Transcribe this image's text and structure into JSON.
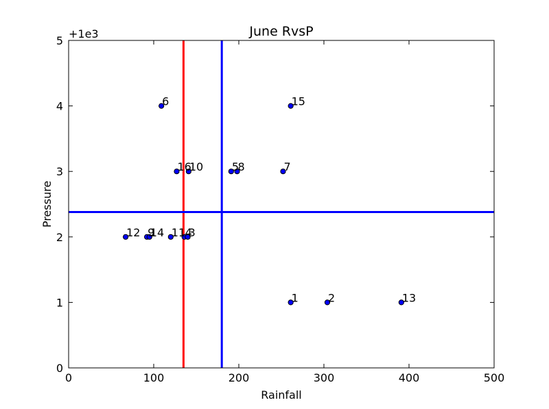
{
  "chart_data": {
    "type": "scatter",
    "title": "June RvsP",
    "xlabel": "Rainfall",
    "ylabel": "Pressure",
    "y_offset_label": "+1e3",
    "xlim": [
      0,
      500
    ],
    "ylim": [
      0,
      5
    ],
    "xticks": [
      "0",
      "100",
      "200",
      "300",
      "400",
      "500"
    ],
    "yticks": [
      "0",
      "1",
      "2",
      "3",
      "4",
      "5"
    ],
    "grid": false,
    "point_color": "#0000ff",
    "points": [
      {
        "label": "1",
        "x": 261,
        "y": 1
      },
      {
        "label": "2",
        "x": 304,
        "y": 1
      },
      {
        "label": "13",
        "x": 391,
        "y": 1
      },
      {
        "label": "12",
        "x": 67,
        "y": 2
      },
      {
        "label": "9",
        "x": 92,
        "y": 2
      },
      {
        "label": "14",
        "x": 95,
        "y": 2
      },
      {
        "label": "11",
        "x": 120,
        "y": 2
      },
      {
        "label": "4",
        "x": 136,
        "y": 2
      },
      {
        "label": "3",
        "x": 140,
        "y": 2
      },
      {
        "label": "16",
        "x": 127,
        "y": 3
      },
      {
        "label": "10",
        "x": 141,
        "y": 3
      },
      {
        "label": "5",
        "x": 191,
        "y": 3
      },
      {
        "label": "8",
        "x": 198,
        "y": 3
      },
      {
        "label": "7",
        "x": 252,
        "y": 3
      },
      {
        "label": "6",
        "x": 109,
        "y": 4
      },
      {
        "label": "15",
        "x": 261,
        "y": 4
      }
    ],
    "reference_lines": [
      {
        "orientation": "vertical",
        "x": 135,
        "color": "#ff0000"
      },
      {
        "orientation": "vertical",
        "x": 180,
        "color": "#0000ff"
      },
      {
        "orientation": "horizontal",
        "y": 2.38,
        "color": "#0000ff"
      }
    ]
  }
}
